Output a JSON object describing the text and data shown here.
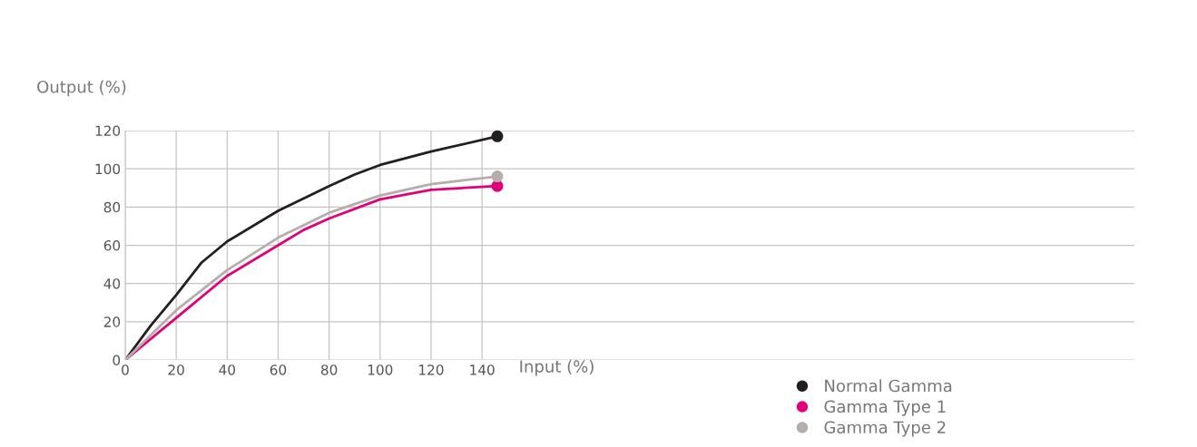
{
  "chart_data": {
    "type": "line",
    "xlabel": "Input (%)",
    "ylabel": "Output (%)",
    "xlim": [
      0,
      396
    ],
    "ylim": [
      0,
      120
    ],
    "xticks": [
      0,
      20,
      40,
      60,
      80,
      100,
      120,
      140
    ],
    "yticks": [
      0,
      20,
      40,
      60,
      80,
      100,
      120
    ],
    "grid": true,
    "legend": "bottom right",
    "marker": "none",
    "line_style": "solid",
    "series": [
      {
        "name": "Normal Gamma",
        "color": "#231f20",
        "x": [
          0,
          10,
          20,
          30,
          40,
          60,
          80,
          90,
          100,
          120,
          146
        ],
        "values": [
          0,
          18,
          34,
          51,
          62,
          78,
          91,
          97,
          102,
          109,
          117
        ]
      },
      {
        "name": "Gamma Type 1",
        "color": "#e2007a",
        "x": [
          0,
          20,
          40,
          60,
          70,
          80,
          100,
          120,
          146
        ],
        "values": [
          0,
          22,
          44,
          60,
          68,
          74,
          84,
          89,
          91
        ]
      },
      {
        "name": "Gamma Type 2",
        "color": "#b5aeab",
        "x": [
          0,
          20,
          40,
          60,
          80,
          100,
          120,
          146
        ],
        "values": [
          0,
          26,
          47,
          64,
          77,
          86,
          92,
          96
        ]
      },
      {
        "type": "scatter",
        "marker": "circle",
        "color": "#231f20",
        "x": [
          146
        ],
        "values": [
          117
        ]
      },
      {
        "type": "scatter",
        "marker": "circle",
        "color": "#e2007a",
        "x": [
          146
        ],
        "values": [
          91
        ]
      },
      {
        "type": "scatter",
        "marker": "circle",
        "color": "#b5aeab",
        "x": [
          146
        ],
        "values": [
          96
        ]
      }
    ]
  }
}
